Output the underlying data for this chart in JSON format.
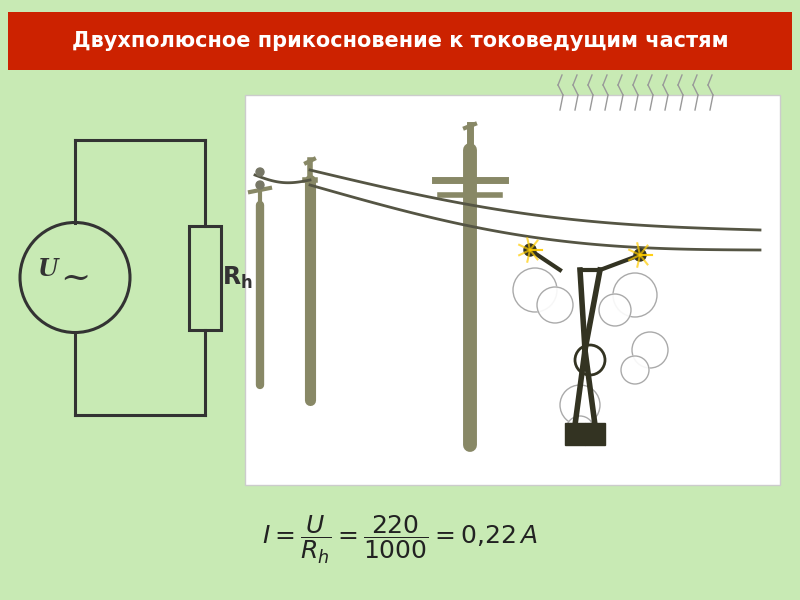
{
  "title": "Двухполюсное прикосновение к токоведущим частям",
  "title_color": "#ffffff",
  "title_bg_color": "#cc2200",
  "bg_color": "#c8eab4",
  "circuit_line_color": "#333333",
  "formula_color": "#222222",
  "img_bg": "#ffffff",
  "img_border": "#cccccc",
  "title_fontsize": 15,
  "formula_fontsize": 18
}
